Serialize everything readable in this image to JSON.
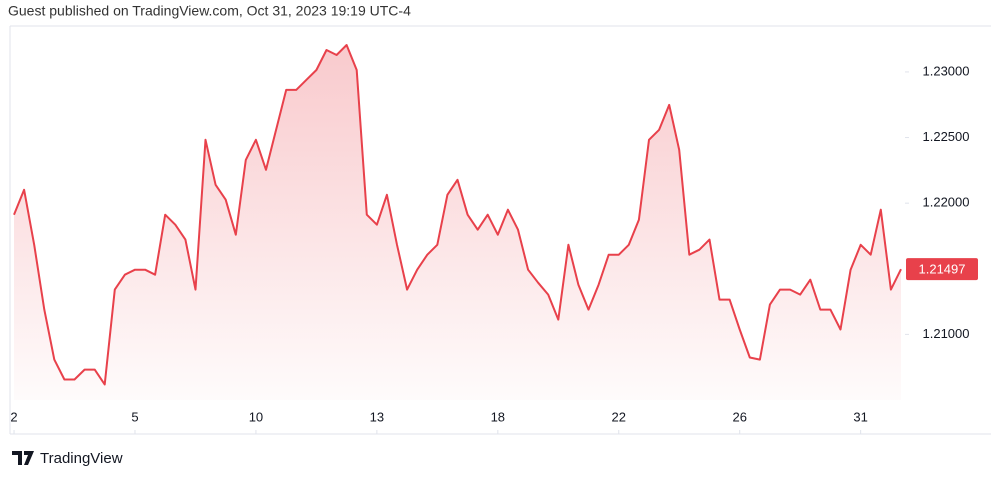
{
  "chart_data": {
    "type": "line",
    "title": "Guest published on TradingView.com, Oct 31, 2023 19:19 UTC-4",
    "source": "TradingView",
    "x": [
      0,
      0.25,
      0.5,
      0.75,
      1,
      1.25,
      1.5,
      1.75,
      2,
      2.25,
      2.5,
      2.75,
      3,
      3.25,
      3.5,
      3.75,
      4,
      4.25,
      4.5,
      4.75,
      5,
      5.25,
      5.5,
      5.75,
      6,
      6.25,
      6.5,
      6.75,
      7,
      7.25,
      7.5,
      7.75,
      8,
      8.25,
      8.5,
      8.75,
      9,
      9.25,
      9.5,
      9.75,
      10,
      10.25,
      10.5,
      10.75,
      11,
      11.25,
      11.5,
      11.75,
      12,
      12.25,
      12.5,
      12.75,
      13,
      13.25,
      13.5,
      13.75,
      14,
      14.25,
      14.5,
      14.75,
      15,
      15.25,
      15.5,
      15.75,
      16,
      16.25,
      16.5,
      16.75,
      17,
      17.25,
      17.5,
      17.75,
      18,
      18.25,
      18.5,
      18.75,
      19,
      19.25,
      19.5,
      19.75,
      20,
      20.25,
      20.5,
      20.75,
      21,
      21.25,
      21.5,
      21.75,
      22
    ],
    "values": [
      1.21912,
      1.22102,
      1.21683,
      1.21189,
      1.20808,
      1.20656,
      1.20656,
      1.20732,
      1.20732,
      1.20618,
      1.21341,
      1.21455,
      1.21493,
      1.21493,
      1.21455,
      1.21912,
      1.21836,
      1.21722,
      1.21341,
      1.22483,
      1.2214,
      1.22026,
      1.2176,
      1.2233,
      1.22483,
      1.22254,
      1.22559,
      1.22863,
      1.22863,
      1.22939,
      1.23015,
      1.23167,
      1.23129,
      1.23205,
      1.23015,
      1.21912,
      1.21836,
      1.22064,
      1.21683,
      1.21341,
      1.21493,
      1.21607,
      1.21683,
      1.22064,
      1.22178,
      1.21912,
      1.21798,
      1.21912,
      1.2176,
      1.2195,
      1.21798,
      1.21493,
      1.21394,
      1.21303,
      1.21113,
      1.21683,
      1.21379,
      1.21189,
      1.21379,
      1.21607,
      1.21607,
      1.21683,
      1.21874,
      1.22483,
      1.22559,
      1.22749,
      1.22406,
      1.21607,
      1.21645,
      1.21722,
      1.21265,
      1.21265,
      1.21037,
      1.20824,
      1.20808,
      1.21227,
      1.21341,
      1.21341,
      1.21303,
      1.21417,
      1.21189,
      1.21189,
      1.21037,
      1.21493,
      1.21683,
      1.21607,
      1.2195,
      1.21341,
      1.21497
    ],
    "color": "#e8414b",
    "last_value": 1.21497,
    "xlim": [
      -0.1,
      22.1
    ],
    "xticks": [
      {
        "value": 0,
        "label": "2"
      },
      {
        "value": 3,
        "label": "5"
      },
      {
        "value": 6,
        "label": "10"
      },
      {
        "value": 9,
        "label": "13"
      },
      {
        "value": 12,
        "label": "18"
      },
      {
        "value": 15,
        "label": "22"
      },
      {
        "value": 18,
        "label": "26"
      },
      {
        "value": 21,
        "label": "31"
      }
    ],
    "ylim": [
      1.205,
      1.2335
    ],
    "yticks": [
      {
        "value": 1.21,
        "label": "1.21000"
      },
      {
        "value": 1.22,
        "label": "1.22000"
      },
      {
        "value": 1.225,
        "label": "1.22500"
      },
      {
        "value": 1.23,
        "label": "1.23000"
      }
    ],
    "grid": false
  }
}
